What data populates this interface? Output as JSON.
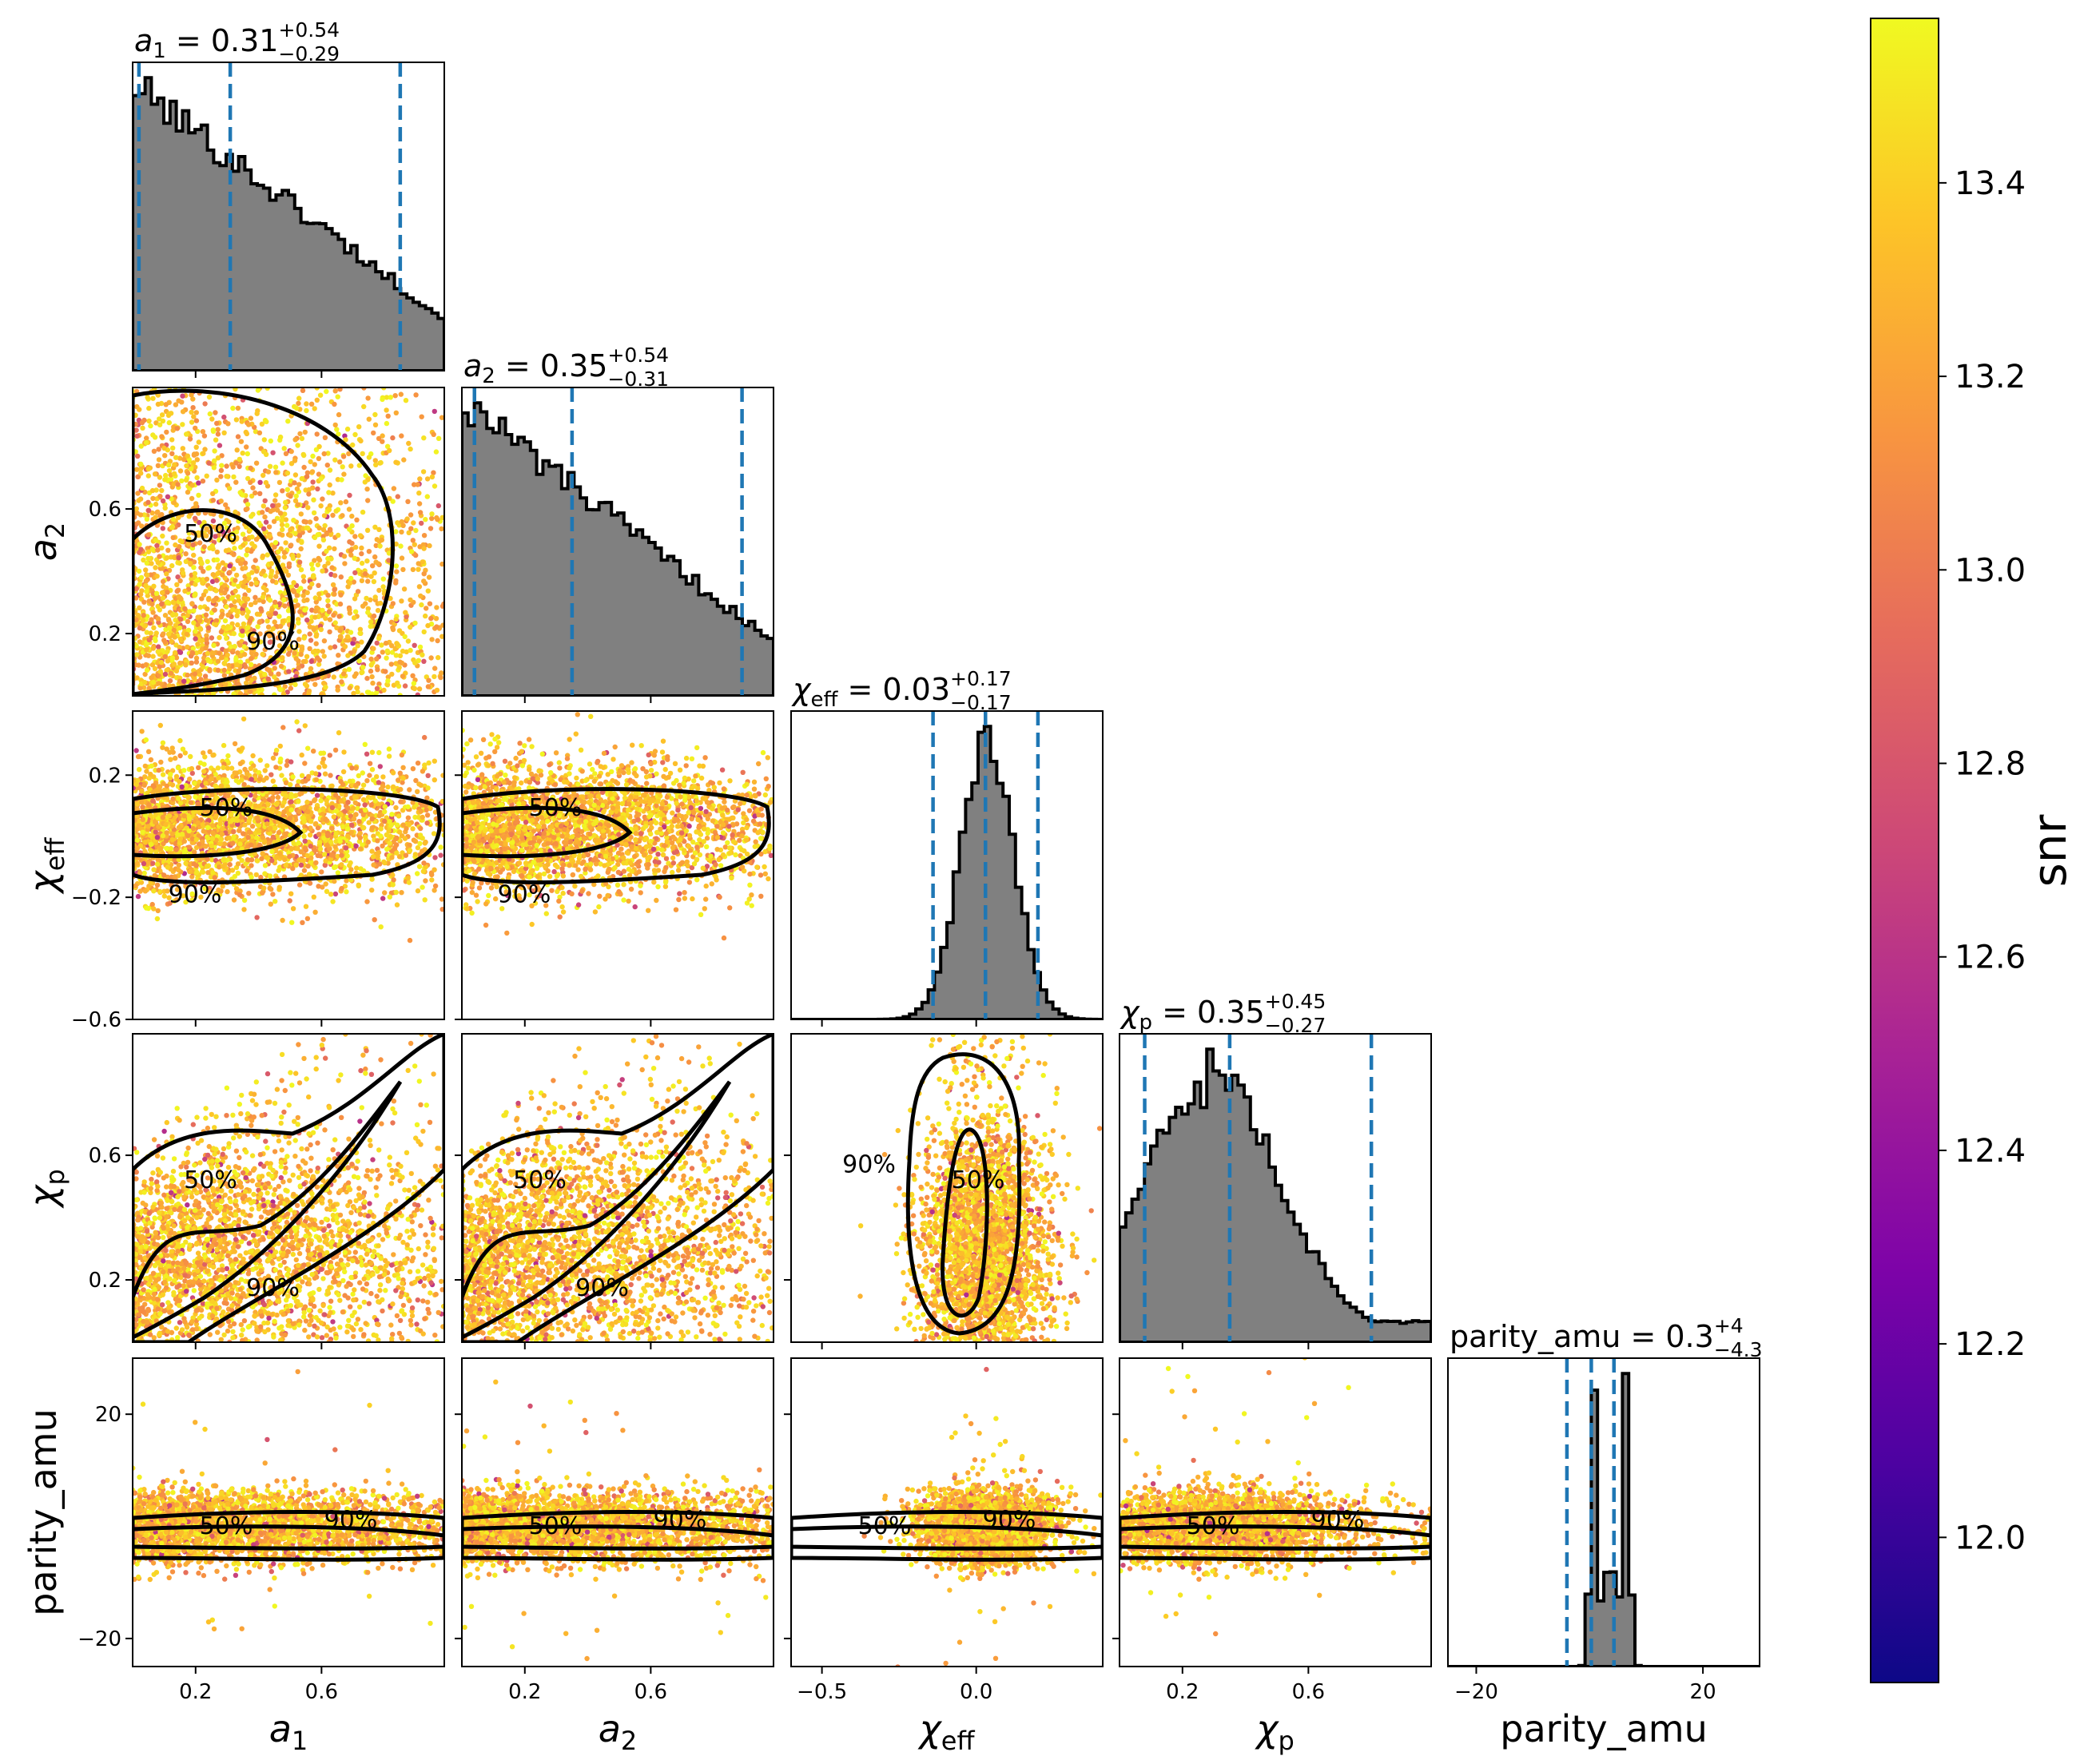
{
  "chart_data": {
    "type": "scatter",
    "plot_kind": "corner plot",
    "colorbar": {
      "label": "snr",
      "range": [
        11.85,
        13.57
      ],
      "ticks": [
        "12.0",
        "12.2",
        "12.4",
        "12.6",
        "12.8",
        "13.0",
        "13.2",
        "13.4"
      ],
      "colormap": "plasma"
    },
    "parameters": [
      {
        "key": "a1",
        "label": "a",
        "sub": "1",
        "italic": true,
        "range": [
          0,
          0.99
        ],
        "ticks": [
          0.2,
          0.6
        ],
        "tick_labels": [
          "0.2",
          "0.6"
        ],
        "median": "0.31",
        "plus": "+0.54",
        "minus": "−0.29",
        "quantile_lines": [
          0.02,
          0.31,
          0.85
        ],
        "hist_shape": "decreasing"
      },
      {
        "key": "a2",
        "label": "a",
        "sub": "2",
        "italic": true,
        "range": [
          0,
          0.99
        ],
        "ticks": [
          0.2,
          0.6
        ],
        "tick_labels": [
          "0.2",
          "0.6"
        ],
        "median": "0.35",
        "plus": "+0.54",
        "minus": "−0.31",
        "quantile_lines": [
          0.04,
          0.35,
          0.89
        ],
        "hist_shape": "decreasing"
      },
      {
        "key": "chi_eff",
        "label": "χ",
        "sub": "eff",
        "italic": true,
        "range": [
          -0.6,
          0.41
        ],
        "ticks": [
          -0.6,
          -0.2,
          0.2
        ],
        "tick_labels": [
          "−0.6",
          "−0.2",
          "0.2"
        ],
        "xticks": [
          -0.5,
          0.0
        ],
        "xtick_labels": [
          "−0.5",
          "0.0"
        ],
        "median": "0.03",
        "plus": "+0.17",
        "minus": "−0.17",
        "quantile_lines": [
          -0.14,
          0.03,
          0.2
        ],
        "hist_shape": "gaussian"
      },
      {
        "key": "chi_p",
        "label": "χ",
        "sub": "p",
        "italic": true,
        "range": [
          0,
          0.99
        ],
        "ticks": [
          0.2,
          0.6
        ],
        "tick_labels": [
          "0.2",
          "0.6"
        ],
        "median": "0.35",
        "plus": "+0.45",
        "minus": "−0.27",
        "quantile_lines": [
          0.08,
          0.35,
          0.8
        ],
        "hist_shape": "peaked"
      },
      {
        "key": "parity_amu",
        "label": "parity_amu",
        "sub": "",
        "italic": false,
        "range": [
          -25,
          30
        ],
        "ticks": [
          -20,
          20
        ],
        "tick_labels": [
          "−20",
          "20"
        ],
        "median": "0.3",
        "plus": "+4",
        "minus": "−4.3",
        "quantile_lines": [
          -4,
          0.3,
          4.3
        ],
        "hist_shape": "bimodal"
      }
    ],
    "contour_levels": [
      "50%",
      "90%"
    ],
    "hist_color": "#808080",
    "quantile_line_color": "#1f77b4",
    "contour_color": "#000000"
  }
}
